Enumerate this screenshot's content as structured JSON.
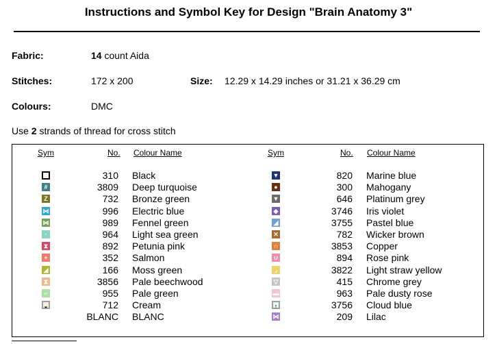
{
  "title": "Instructions and Symbol Key for Design \"Brain Anatomy 3\"",
  "fabric": {
    "label": "Fabric:",
    "count": "14",
    "rest": " count Aida"
  },
  "stitches": {
    "label": "Stitches:",
    "value": "172 x 200"
  },
  "size": {
    "label": "Size:",
    "value": "12.29 x 14.29 inches or 31.21 x 36.29 cm"
  },
  "colours": {
    "label": "Colours:",
    "value": "DMC"
  },
  "strands": {
    "pre": "Use ",
    "count": "2",
    "post": " strands of thread for cross stitch"
  },
  "headers": {
    "sym": "Sym",
    "no": "No.",
    "name": "Colour Name"
  },
  "left": [
    {
      "no": "310",
      "name": "Black",
      "color": "#ffffff",
      "glyph": "",
      "border": "#000000"
    },
    {
      "no": "3809",
      "name": "Deep turquoise",
      "color": "#3f7f85",
      "glyph": "#"
    },
    {
      "no": "732",
      "name": "Bronze green",
      "color": "#7d7521",
      "glyph": "Z"
    },
    {
      "no": "996",
      "name": "Electric blue",
      "color": "#2fa6dd",
      "glyph": "⋈"
    },
    {
      "no": "989",
      "name": "Fennel green",
      "color": "#76a454",
      "glyph": "⋈"
    },
    {
      "no": "964",
      "name": "Light sea green",
      "color": "#8fd5c6",
      "glyph": "·"
    },
    {
      "no": "892",
      "name": "Petunia pink",
      "color": "#e0435e",
      "glyph": "⧗"
    },
    {
      "no": "352",
      "name": "Salmon",
      "color": "#ee7b6a",
      "glyph": "+"
    },
    {
      "no": "166",
      "name": "Moss green",
      "color": "#b3b62d",
      "glyph": "◢"
    },
    {
      "no": "3856",
      "name": "Pale beechwood",
      "color": "#f1b98a",
      "glyph": "⧗"
    },
    {
      "no": "955",
      "name": "Pale green",
      "color": "#a8e3a5",
      "glyph": "⌐"
    },
    {
      "no": "712",
      "name": "Cream",
      "color": "#f6f0dc",
      "glyph": "◒",
      "border": "#9e9e9e"
    },
    {
      "no": "BLANC",
      "name": "BLANC",
      "color": "#ffffff",
      "glyph": ""
    }
  ],
  "right": [
    {
      "no": "820",
      "name": "Marine blue",
      "color": "#1d3278",
      "glyph": "▼"
    },
    {
      "no": "300",
      "name": "Mahogany",
      "color": "#6e2c14",
      "glyph": "●"
    },
    {
      "no": "646",
      "name": "Platinum grey",
      "color": "#6f6b64",
      "glyph": "▼"
    },
    {
      "no": "3746",
      "name": "Iris violet",
      "color": "#7a5bbd",
      "glyph": "◆"
    },
    {
      "no": "3755",
      "name": "Pastel blue",
      "color": "#6fa0d5",
      "glyph": "◢"
    },
    {
      "no": "782",
      "name": "Wicker brown",
      "color": "#a86d2c",
      "glyph": "✕"
    },
    {
      "no": "3853",
      "name": "Copper",
      "color": "#e57f3e",
      "glyph": "∩"
    },
    {
      "no": "894",
      "name": "Rose pink",
      "color": "#f38aa6",
      "glyph": "∪"
    },
    {
      "no": "3822",
      "name": "Light straw yellow",
      "color": "#eed26a",
      "glyph": "⌟"
    },
    {
      "no": "415",
      "name": "Chrome grey",
      "color": "#c6c6c6",
      "glyph": "▽"
    },
    {
      "no": "963",
      "name": "Pale dusty rose",
      "color": "#f6c4cf",
      "glyph": "▬"
    },
    {
      "no": "3756",
      "name": "Cloud blue",
      "color": "#e6f6fb",
      "glyph": "↑",
      "border": "#9e9e9e"
    },
    {
      "no": "209",
      "name": "Lilac",
      "color": "#a77fc4",
      "glyph": "⋈"
    }
  ]
}
